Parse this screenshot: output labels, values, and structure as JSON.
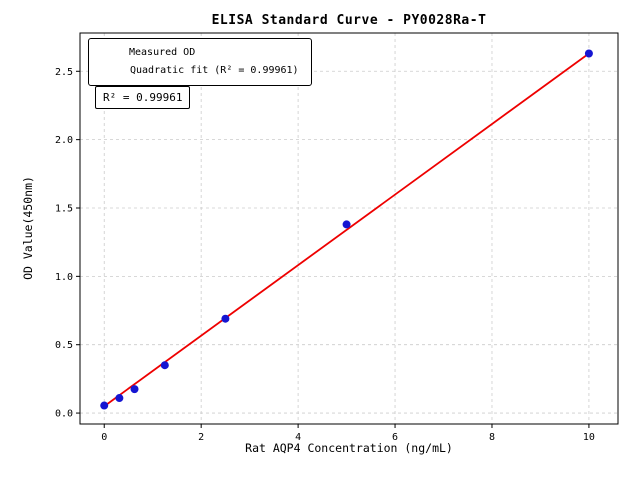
{
  "colors": {
    "measured_point": "#1515d2",
    "fit_line": "#ee0000",
    "grid": "#cccccc",
    "axes": "#000000",
    "background": "#ffffff"
  },
  "chart_data": {
    "type": "scatter",
    "title": "ELISA Standard Curve - PY0028Ra-T",
    "xlabel": "Rat AQP4 Concentration (ng/mL)",
    "ylabel": "OD Value(450nm)",
    "xlim": [
      -0.5,
      10.6
    ],
    "ylim": [
      -0.08,
      2.78
    ],
    "xticks": [
      0,
      2,
      4,
      6,
      8,
      10
    ],
    "xtick_labels": [
      "0",
      "2",
      "4",
      "6",
      "8",
      "10"
    ],
    "yticks": [
      0,
      0.5,
      1.0,
      1.5,
      2.0,
      2.5
    ],
    "ytick_labels": [
      "0.0",
      "0.5",
      "1.0",
      "1.5",
      "2.0",
      "2.5"
    ],
    "grid": true,
    "legend_position": "upper left",
    "annotation": "R² = 0.99961",
    "r_squared": "0.99961",
    "series": [
      {
        "name": "Measured OD",
        "type": "scatter",
        "color": "#1515d2",
        "x": [
          0,
          0.3125,
          0.625,
          1.25,
          2.5,
          5,
          10
        ],
        "y": [
          0.055,
          0.11,
          0.175,
          0.35,
          0.69,
          1.38,
          2.63
        ]
      },
      {
        "name": "Quadratic fit (R² = 0.99961)",
        "type": "line",
        "color": "#ee0000",
        "x": [
          0,
          10
        ],
        "y": [
          0.05,
          2.63
        ]
      }
    ]
  }
}
